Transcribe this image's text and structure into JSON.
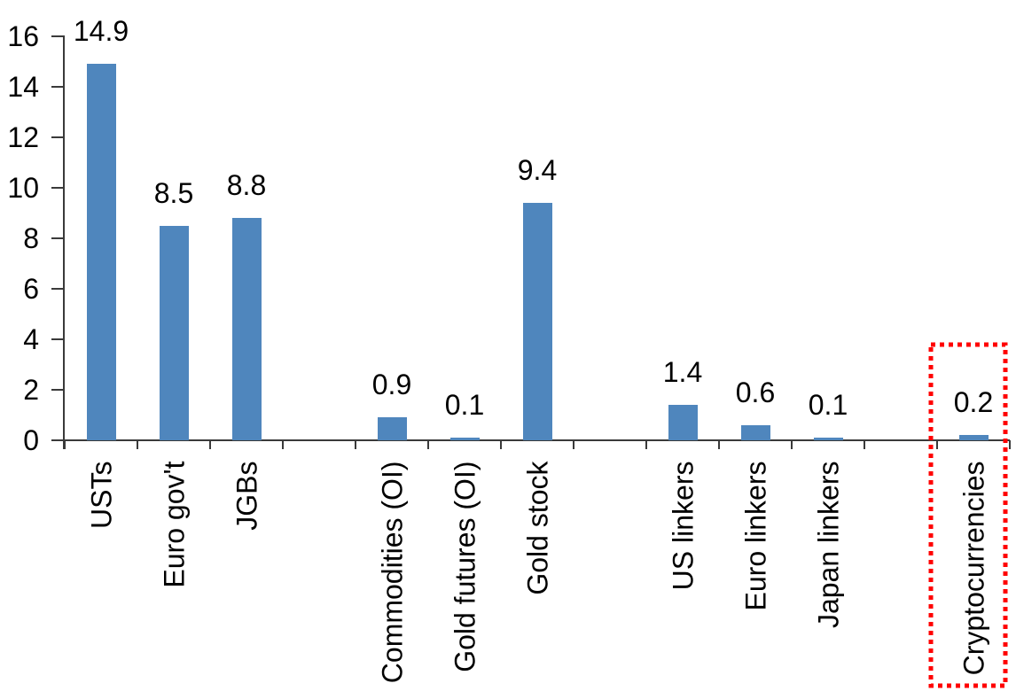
{
  "chart_data": {
    "type": "bar",
    "title": "",
    "xlabel": "",
    "ylabel": "",
    "categories": [
      "USTs",
      "Euro gov't",
      "JGBs",
      "",
      "Commodities (OI)",
      "Gold futures (OI)",
      "Gold stock",
      "",
      "US linkers",
      "Euro linkers",
      "Japan linkers",
      "",
      "Cryptocurrencies"
    ],
    "values": [
      14.9,
      8.5,
      8.8,
      null,
      0.9,
      0.1,
      9.4,
      null,
      1.4,
      0.6,
      0.1,
      null,
      0.2
    ],
    "data_labels": [
      "14.9",
      "8.5",
      "8.8",
      null,
      "0.9",
      "0.1",
      "9.4",
      null,
      "1.4",
      "0.6",
      "0.1",
      null,
      "0.2"
    ],
    "ylim": [
      0,
      16
    ],
    "yticks": [
      0,
      2,
      4,
      6,
      8,
      10,
      12,
      14,
      16
    ],
    "grid": false,
    "legend": null,
    "bar_color": "#4F86BD",
    "axis_color": "#3a3a3a",
    "label_color": "#000000",
    "highlight": {
      "index": 12,
      "label": "Cryptocurrencies",
      "color": "#FF0000",
      "style": "dotted-box"
    }
  }
}
